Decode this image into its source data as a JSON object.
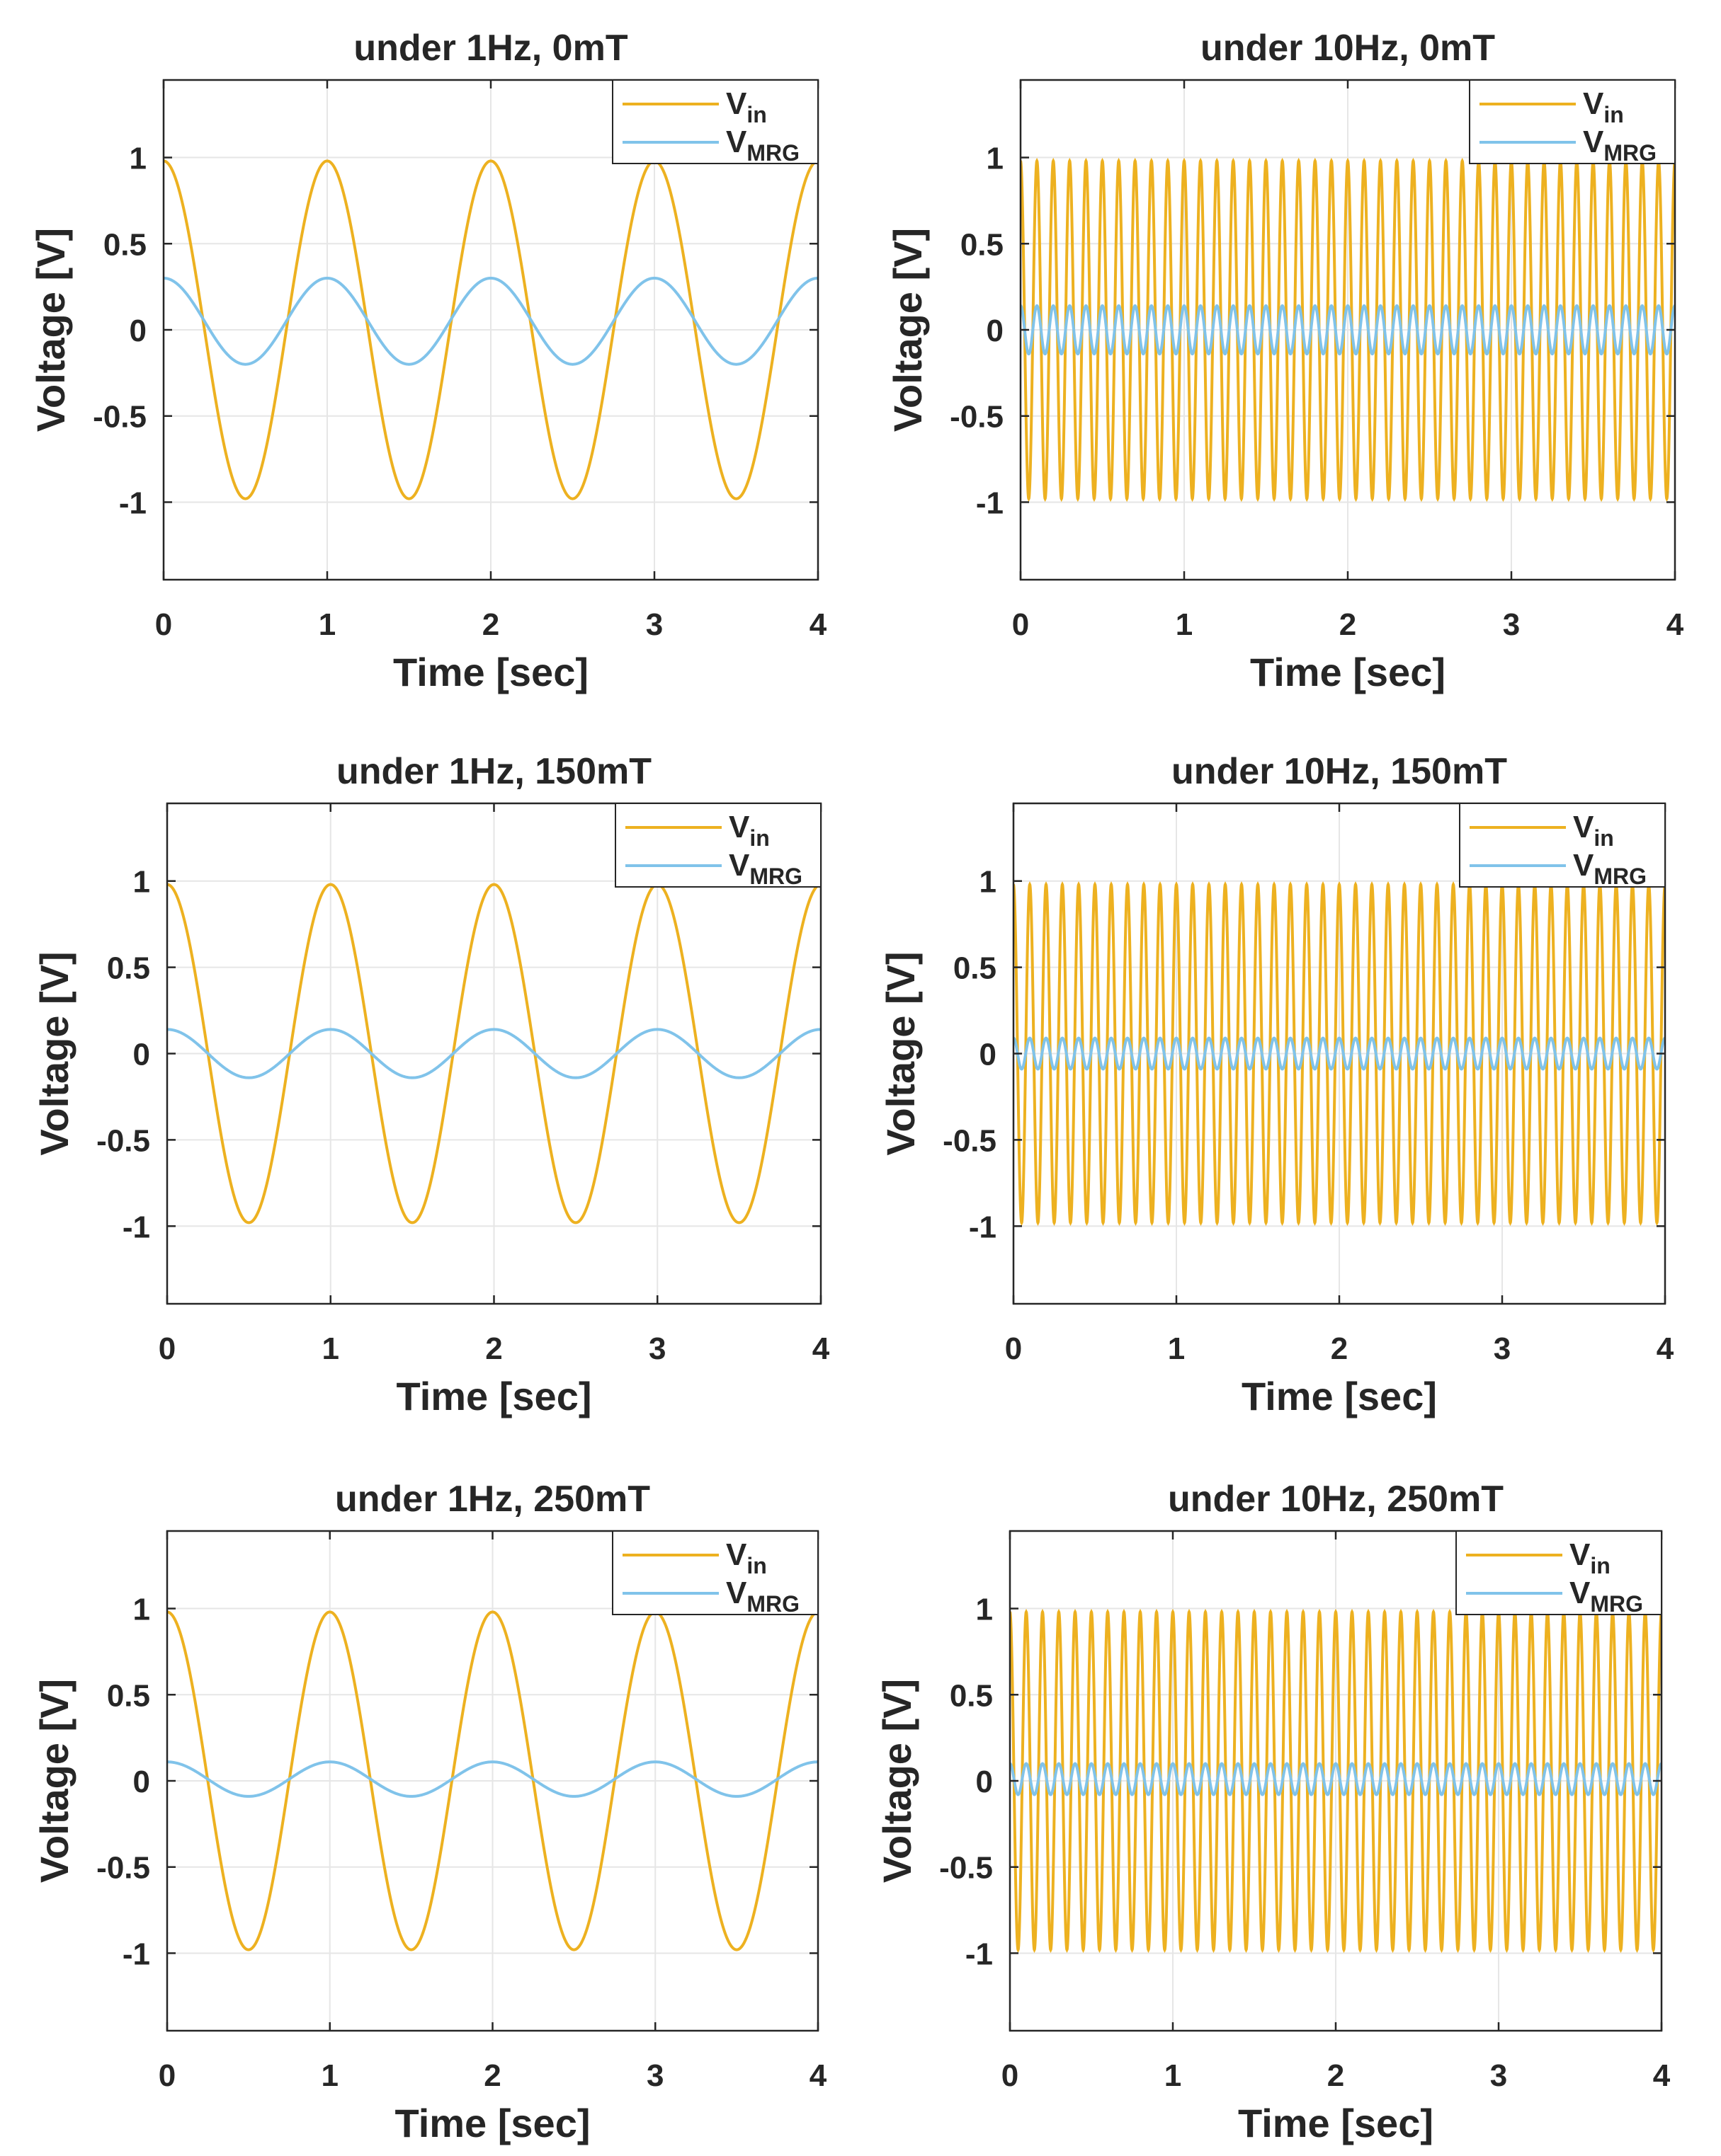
{
  "colors": {
    "vin": "#EDB120",
    "vmrg": "#80C3EA",
    "axis": "#262626",
    "grid": "#E6E6E6"
  },
  "chart_data": [
    {
      "type": "line",
      "title": "under 1Hz, 0mT",
      "xlabel": "Time [sec]",
      "ylabel": "Voltage [V]",
      "xlim": [
        0,
        4
      ],
      "ylim": [
        -1.45,
        1.45
      ],
      "xticks": [
        "0",
        "1",
        "2",
        "3",
        "4"
      ],
      "yticks": [
        "1",
        "0.5",
        "0",
        "-0.5",
        "-1"
      ],
      "ytick_values": [
        1,
        0.5,
        0,
        -0.5,
        -1
      ],
      "grid": true,
      "legend_position": "top-right",
      "legend": [
        {
          "base": "V",
          "sub": "in"
        },
        {
          "base": "V",
          "sub": "MRG"
        }
      ],
      "series": [
        {
          "name": "Vin",
          "frequency_hz": 1,
          "amplitude": 0.98,
          "offset": 0,
          "phase_deg": 0
        },
        {
          "name": "VMRG",
          "frequency_hz": 1,
          "amplitude": 0.25,
          "offset": 0.05,
          "phase_deg": 0
        }
      ]
    },
    {
      "type": "line",
      "title": "under 10Hz, 0mT",
      "xlabel": "Time [sec]",
      "ylabel": "Voltage [V]",
      "xlim": [
        0,
        4
      ],
      "ylim": [
        -1.45,
        1.45
      ],
      "xticks": [
        "0",
        "1",
        "2",
        "3",
        "4"
      ],
      "yticks": [
        "1",
        "0.5",
        "0",
        "-0.5",
        "-1"
      ],
      "ytick_values": [
        1,
        0.5,
        0,
        -0.5,
        -1
      ],
      "grid": true,
      "legend_position": "top-right",
      "legend": [
        {
          "base": "V",
          "sub": "in"
        },
        {
          "base": "V",
          "sub": "MRG"
        }
      ],
      "series": [
        {
          "name": "Vin",
          "frequency_hz": 10,
          "amplitude": 0.98,
          "offset": 0,
          "phase_deg": 0
        },
        {
          "name": "VMRG",
          "frequency_hz": 10,
          "amplitude": 0.14,
          "offset": 0,
          "phase_deg": 0
        }
      ]
    },
    {
      "type": "line",
      "title": "under 1Hz, 150mT",
      "xlabel": "Time [sec]",
      "ylabel": "Voltage [V]",
      "xlim": [
        0,
        4
      ],
      "ylim": [
        -1.45,
        1.45
      ],
      "xticks": [
        "0",
        "1",
        "2",
        "3",
        "4"
      ],
      "yticks": [
        "1",
        "0.5",
        "0",
        "-0.5",
        "-1"
      ],
      "ytick_values": [
        1,
        0.5,
        0,
        -0.5,
        -1
      ],
      "grid": true,
      "legend_position": "top-right",
      "legend": [
        {
          "base": "V",
          "sub": "in"
        },
        {
          "base": "V",
          "sub": "MRG"
        }
      ],
      "series": [
        {
          "name": "Vin",
          "frequency_hz": 1,
          "amplitude": 0.98,
          "offset": 0,
          "phase_deg": 0
        },
        {
          "name": "VMRG",
          "frequency_hz": 1,
          "amplitude": 0.14,
          "offset": 0,
          "phase_deg": 0
        }
      ]
    },
    {
      "type": "line",
      "title": "under 10Hz, 150mT",
      "xlabel": "Time [sec]",
      "ylabel": "Voltage [V]",
      "xlim": [
        0,
        4
      ],
      "ylim": [
        -1.45,
        1.45
      ],
      "xticks": [
        "0",
        "1",
        "2",
        "3",
        "4"
      ],
      "yticks": [
        "1",
        "0.5",
        "0",
        "-0.5",
        "-1"
      ],
      "ytick_values": [
        1,
        0.5,
        0,
        -0.5,
        -1
      ],
      "grid": true,
      "legend_position": "top-right",
      "legend": [
        {
          "base": "V",
          "sub": "in"
        },
        {
          "base": "V",
          "sub": "MRG"
        }
      ],
      "series": [
        {
          "name": "Vin",
          "frequency_hz": 10,
          "amplitude": 0.98,
          "offset": 0,
          "phase_deg": 0
        },
        {
          "name": "VMRG",
          "frequency_hz": 10,
          "amplitude": 0.09,
          "offset": 0,
          "phase_deg": 0
        }
      ]
    },
    {
      "type": "line",
      "title": "under 1Hz, 250mT",
      "xlabel": "Time [sec]",
      "ylabel": "Voltage [V]",
      "xlim": [
        0,
        4
      ],
      "ylim": [
        -1.45,
        1.45
      ],
      "xticks": [
        "0",
        "1",
        "2",
        "3",
        "4"
      ],
      "yticks": [
        "1",
        "0.5",
        "0",
        "-0.5",
        "-1"
      ],
      "ytick_values": [
        1,
        0.5,
        0,
        -0.5,
        -1
      ],
      "grid": true,
      "legend_position": "top-right",
      "legend": [
        {
          "base": "V",
          "sub": "in"
        },
        {
          "base": "V",
          "sub": "MRG"
        }
      ],
      "series": [
        {
          "name": "Vin",
          "frequency_hz": 1,
          "amplitude": 0.98,
          "offset": 0,
          "phase_deg": 0
        },
        {
          "name": "VMRG",
          "frequency_hz": 1,
          "amplitude": 0.1,
          "offset": 0.01,
          "phase_deg": 0
        }
      ]
    },
    {
      "type": "line",
      "title": "under 10Hz, 250mT",
      "xlabel": "Time [sec]",
      "ylabel": "Voltage [V]",
      "xlim": [
        0,
        4
      ],
      "ylim": [
        -1.45,
        1.45
      ],
      "xticks": [
        "0",
        "1",
        "2",
        "3",
        "4"
      ],
      "yticks": [
        "1",
        "0.5",
        "0",
        "-0.5",
        "-1"
      ],
      "ytick_values": [
        1,
        0.5,
        0,
        -0.5,
        -1
      ],
      "grid": true,
      "legend_position": "top-right",
      "legend": [
        {
          "base": "V",
          "sub": "in"
        },
        {
          "base": "V",
          "sub": "MRG"
        }
      ],
      "series": [
        {
          "name": "Vin",
          "frequency_hz": 10,
          "amplitude": 0.98,
          "offset": 0,
          "phase_deg": 0
        },
        {
          "name": "VMRG",
          "frequency_hz": 10,
          "amplitude": 0.09,
          "offset": 0.01,
          "phase_deg": 0
        }
      ]
    }
  ]
}
